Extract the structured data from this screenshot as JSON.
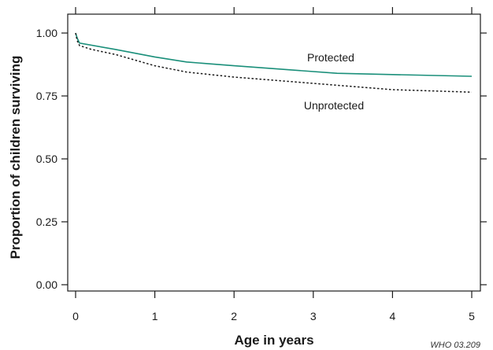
{
  "chart_data": {
    "type": "line",
    "xlabel": "Age in years",
    "ylabel": "Proportion of children surviving",
    "xlim": [
      -0.1,
      5.1
    ],
    "ylim": [
      -0.02,
      1.08
    ],
    "x_ticks": [
      0,
      1,
      2,
      3,
      4,
      5
    ],
    "x_tick_labels": [
      "0",
      "1",
      "2",
      "3",
      "4",
      "5"
    ],
    "y_ticks": [
      0.0,
      0.25,
      0.5,
      0.75,
      1.0
    ],
    "y_tick_labels": [
      "0.00",
      "0.25",
      "0.50",
      "0.75",
      "1.00"
    ],
    "grid": false,
    "series": [
      {
        "name": "Protected",
        "color": "#1a8f7a",
        "style": "solid",
        "x": [
          0,
          0.02,
          0.05,
          0.5,
          1.0,
          1.4,
          2.0,
          3.3,
          4.0,
          5.0
        ],
        "y": [
          1.0,
          0.98,
          0.96,
          0.935,
          0.905,
          0.885,
          0.87,
          0.84,
          0.835,
          0.828
        ]
      },
      {
        "name": "Unprotected",
        "color": "#1a1a1a",
        "style": "dotted",
        "x": [
          0,
          0.02,
          0.05,
          0.2,
          0.5,
          1.0,
          1.4,
          2.0,
          3.0,
          4.0,
          5.0
        ],
        "y": [
          1.0,
          0.97,
          0.95,
          0.935,
          0.915,
          0.87,
          0.845,
          0.825,
          0.8,
          0.775,
          0.765
        ]
      }
    ],
    "credit": "WHO 03.209"
  }
}
